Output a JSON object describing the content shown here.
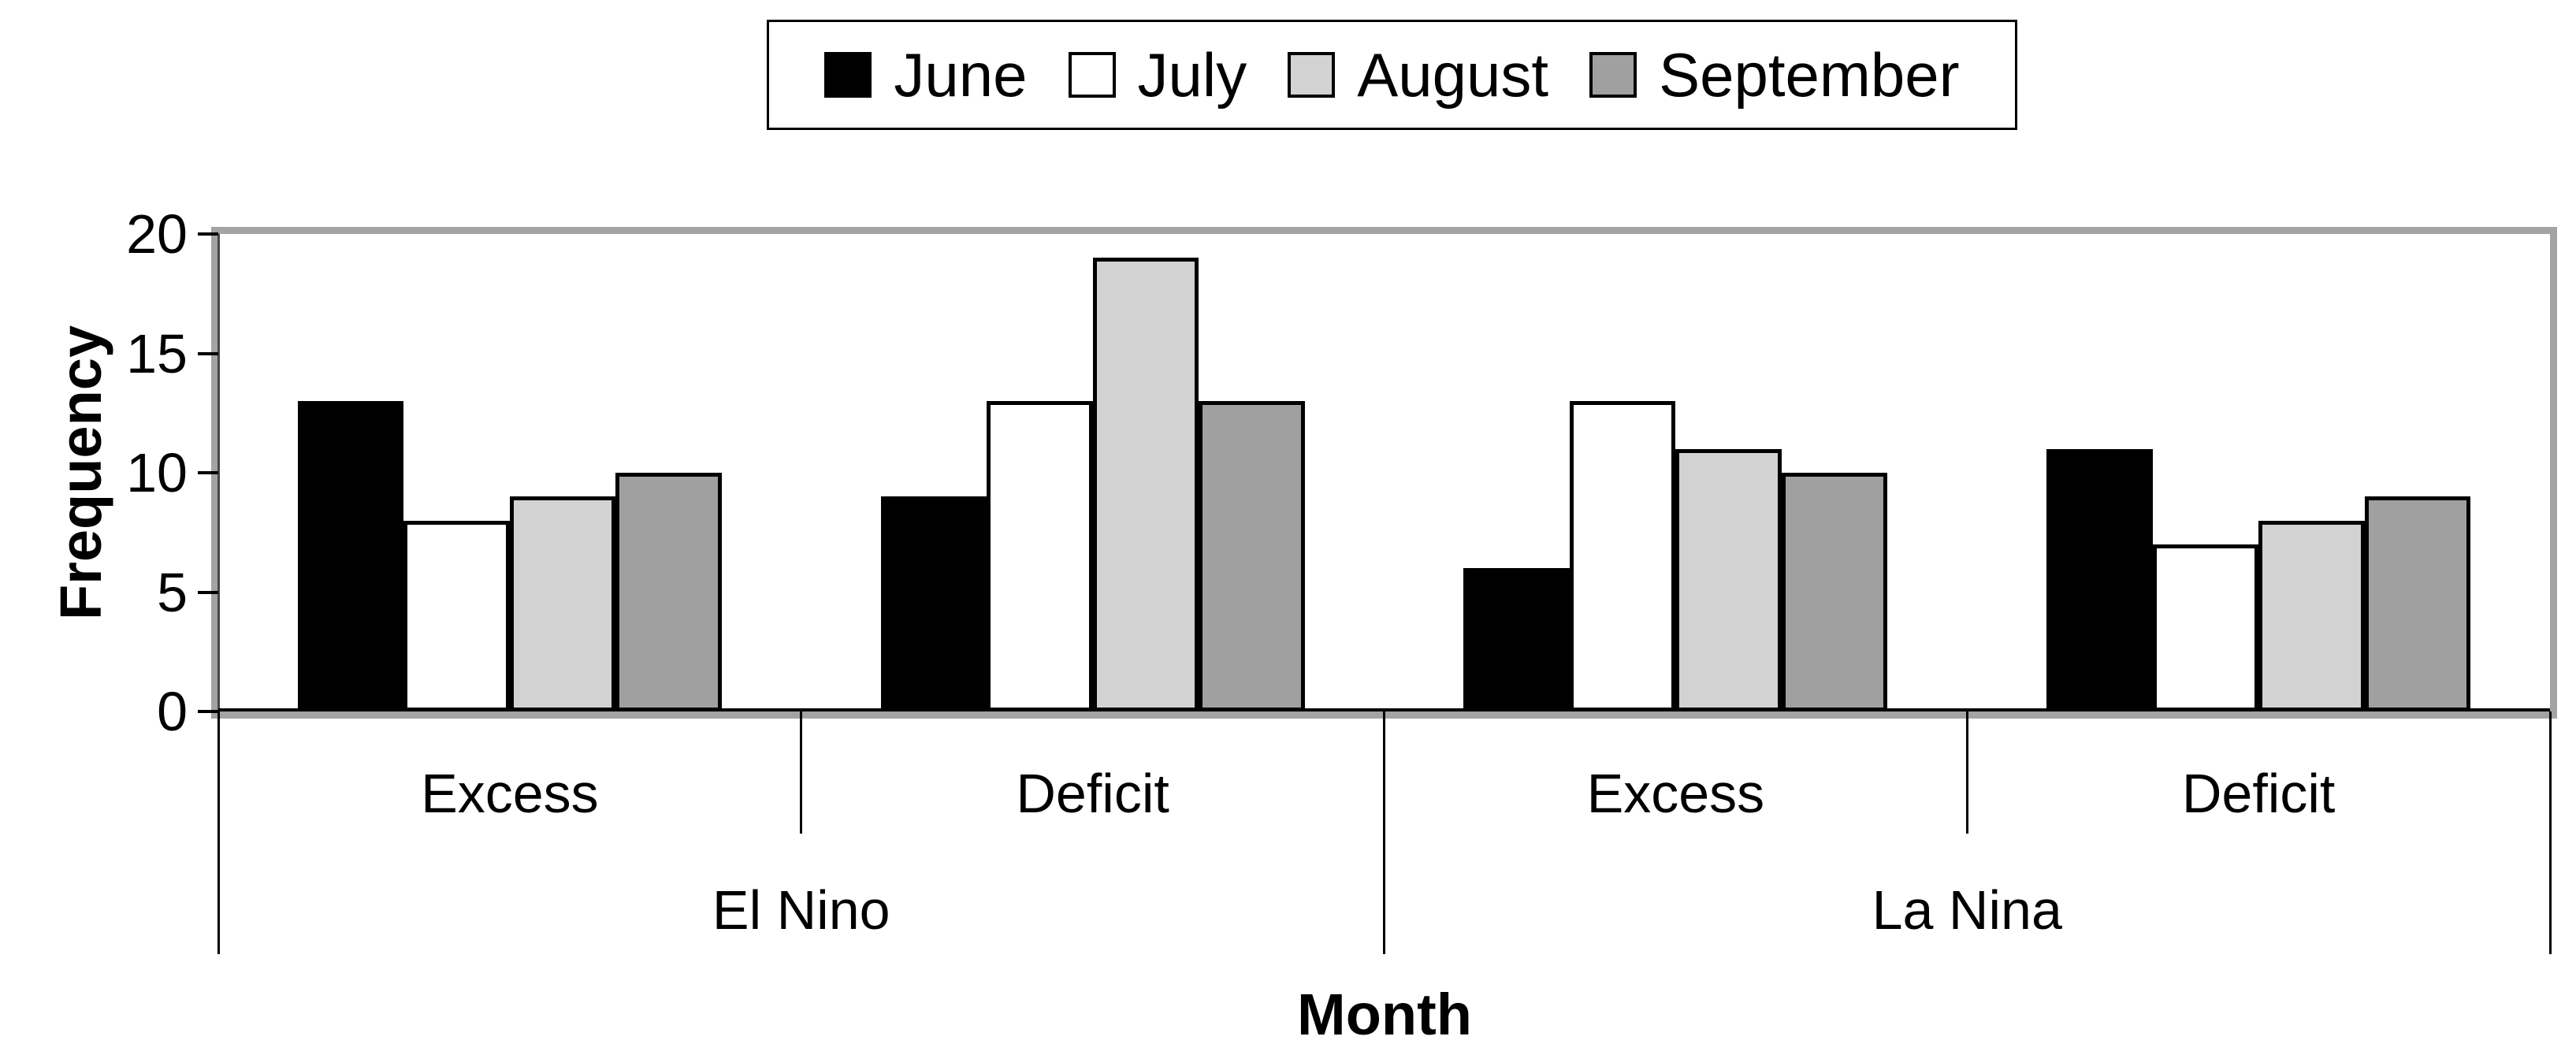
{
  "chart_data": {
    "type": "bar",
    "title": "",
    "xlabel": "Month",
    "ylabel": "Frequency",
    "ylim": [
      0,
      20
    ],
    "yticks": [
      0,
      5,
      10,
      15,
      20
    ],
    "legend_position": "top",
    "grid": false,
    "bar_border_color": "#000000",
    "plot_border_color": "#a3a3a3",
    "category_groups": [
      {
        "label": "El Nino",
        "categories": [
          "Excess",
          "Deficit"
        ]
      },
      {
        "label": "La Nina",
        "categories": [
          "Excess",
          "Deficit"
        ]
      }
    ],
    "categories": [
      "Excess",
      "Deficit",
      "Excess",
      "Deficit"
    ],
    "series": [
      {
        "name": "June",
        "color": "#000000",
        "values": [
          13,
          9,
          6,
          11
        ]
      },
      {
        "name": "July",
        "color": "#ffffff",
        "values": [
          8,
          13,
          13,
          7
        ]
      },
      {
        "name": "August",
        "color": "#d2d2d2",
        "values": [
          9,
          19,
          11,
          8
        ]
      },
      {
        "name": "September",
        "color": "#a0a0a0",
        "values": [
          10,
          13,
          10,
          9
        ]
      }
    ]
  }
}
